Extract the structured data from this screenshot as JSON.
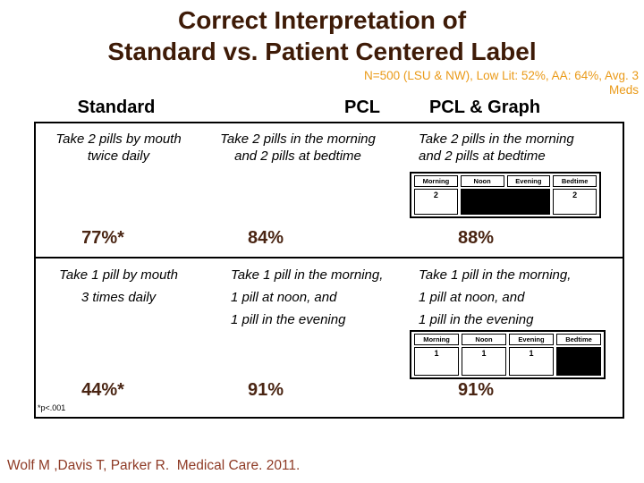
{
  "title": {
    "line1": "Correct Interpretation of",
    "line2": "Standard vs. Patient Centered Label"
  },
  "subtitle": {
    "line1": "N=500 (LSU & NW), Low Lit: 52%, AA: 64%, Avg. 3",
    "line2": "Meds"
  },
  "columns": [
    {
      "header": "Standard"
    },
    {
      "header": "PCL"
    },
    {
      "header": "PCL & Graph"
    }
  ],
  "rows": [
    {
      "standard_lines": [
        "Take 2 pills by mouth",
        "twice daily"
      ],
      "pcl_lines": [
        "Take 2 pills in the morning",
        "and 2 pills at bedtime"
      ],
      "pcl_graph_lines": [
        "Take 2 pills in the morning",
        "and 2 pills at bedtime"
      ],
      "standard_pct": "77%*",
      "pcl_pct": "84%",
      "pcl_graph_pct": "88%"
    },
    {
      "standard_lines": [
        "Take 1 pill by mouth",
        "3 times daily"
      ],
      "pcl_lines": [
        "Take 1 pill in the morning,",
        "1 pill at noon, and",
        "1 pill in the evening"
      ],
      "pcl_graph_lines": [
        "Take 1 pill in the morning,",
        "1 pill at noon, and",
        "1 pill in the evening"
      ],
      "standard_pct": "44%*",
      "pcl_pct": "91%",
      "pcl_graph_pct": "91%"
    }
  ],
  "schedule_graphics": [
    {
      "headers": [
        "Morning",
        "Noon",
        "Evening",
        "Bedtime"
      ],
      "cells": [
        {
          "text": "2",
          "filled": false,
          "span": 1
        },
        {
          "text": "",
          "filled": true,
          "span": 2
        },
        {
          "text": "2",
          "filled": false,
          "span": 1
        }
      ]
    },
    {
      "headers": [
        "Morning",
        "Noon",
        "Evening",
        "Bedtime"
      ],
      "cells": [
        {
          "text": "1",
          "filled": false,
          "span": 1
        },
        {
          "text": "1",
          "filled": false,
          "span": 1
        },
        {
          "text": "1",
          "filled": false,
          "span": 1
        },
        {
          "text": "",
          "filled": true,
          "span": 1
        }
      ]
    }
  ],
  "footnote": "*p<.001",
  "citation": "Wolf M ,Davis T, Parker R.  Medical Care. 2011.",
  "colors": {
    "title": "#3e1b07",
    "subtitle": "#ea9a18",
    "percent": "#4a2513",
    "citation": "#8e3a25",
    "body": "#000000",
    "border": "#000000"
  }
}
